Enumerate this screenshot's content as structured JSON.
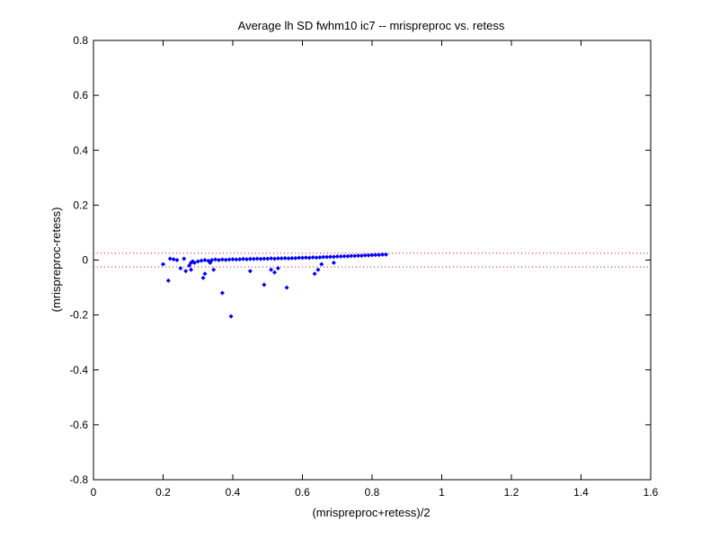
{
  "chart_data": {
    "type": "scatter",
    "title": "Average lh SD fwhm10 ic7 -- mrispreproc vs. retess",
    "xlabel": "(mrispreproc+retess)/2",
    "ylabel": "(mrispreproc-retess)",
    "xlim": [
      0,
      1.6
    ],
    "ylim": [
      -0.8,
      0.8
    ],
    "x_ticks": [
      "0",
      "0.2",
      "0.4",
      "0.6",
      "0.8",
      "1",
      "1.2",
      "1.4",
      "1.6"
    ],
    "y_ticks": [
      "-0.8",
      "-0.6",
      "-0.4",
      "-0.2",
      "0",
      "0.2",
      "0.4",
      "0.6",
      "0.8"
    ],
    "grid": false,
    "legend": "none",
    "reference_lines": [
      {
        "y": 0.025,
        "style": "dotted",
        "color": "#ff0000"
      },
      {
        "y": -0.025,
        "style": "dotted",
        "color": "#ff0000"
      }
    ],
    "series": [
      {
        "marker": "dot",
        "color": "#0000ff",
        "x": [
          0.2,
          0.215,
          0.22,
          0.23,
          0.24,
          0.25,
          0.26,
          0.265,
          0.275,
          0.28,
          0.28,
          0.285,
          0.29,
          0.3,
          0.31,
          0.315,
          0.32,
          0.33,
          0.34,
          0.345,
          0.35,
          0.36,
          0.37,
          0.38,
          0.39,
          0.4,
          0.41,
          0.42,
          0.43,
          0.44,
          0.45,
          0.46,
          0.47,
          0.48,
          0.49,
          0.5,
          0.51,
          0.52,
          0.53,
          0.54,
          0.55,
          0.56,
          0.57,
          0.58,
          0.59,
          0.6,
          0.61,
          0.62,
          0.63,
          0.64,
          0.65,
          0.66,
          0.67,
          0.68,
          0.69,
          0.7,
          0.71,
          0.72,
          0.73,
          0.74,
          0.75,
          0.76,
          0.77,
          0.78,
          0.79,
          0.8,
          0.81,
          0.82,
          0.83,
          0.84,
          0.32,
          0.335,
          0.37,
          0.395,
          0.45,
          0.49,
          0.51,
          0.52,
          0.53,
          0.555,
          0.635,
          0.645,
          0.655,
          0.69
        ],
        "y": [
          -0.015,
          -0.075,
          0.005,
          0.003,
          0.0,
          -0.03,
          0.005,
          -0.04,
          -0.02,
          -0.01,
          -0.035,
          -0.005,
          -0.01,
          -0.005,
          -0.002,
          -0.065,
          0.0,
          -0.003,
          0.0,
          -0.035,
          0.002,
          0.0,
          0.002,
          0.001,
          0.002,
          0.003,
          0.002,
          0.003,
          0.004,
          0.003,
          0.004,
          0.004,
          0.005,
          0.004,
          0.005,
          0.005,
          0.006,
          0.005,
          0.006,
          0.006,
          0.007,
          0.006,
          0.007,
          0.007,
          0.008,
          0.008,
          0.009,
          0.008,
          0.01,
          0.009,
          0.01,
          0.011,
          0.011,
          0.012,
          0.012,
          0.013,
          0.013,
          0.014,
          0.014,
          0.015,
          0.015,
          0.016,
          0.016,
          0.017,
          0.017,
          0.018,
          0.019,
          0.019,
          0.02,
          0.02,
          -0.05,
          -0.01,
          -0.12,
          -0.205,
          -0.04,
          -0.09,
          -0.035,
          -0.045,
          -0.03,
          -0.1,
          -0.05,
          -0.035,
          -0.015,
          -0.01
        ]
      }
    ]
  }
}
